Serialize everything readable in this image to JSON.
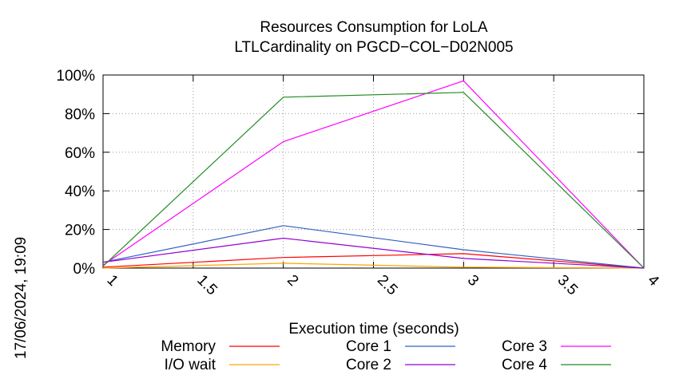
{
  "chart_data": {
    "type": "line",
    "title": "Resources Consumption for LoLA",
    "subtitle": "LTLCardinality on PGCD−COL−D02N005",
    "xlabel": "Execution time (seconds)",
    "ylabel": "",
    "xlim": [
      1,
      4
    ],
    "ylim": [
      0,
      100
    ],
    "x_ticks": [
      "1",
      "1.5",
      "2",
      "2.5",
      "3",
      "3.5",
      "4"
    ],
    "y_ticks": [
      "0%",
      "20%",
      "40%",
      "60%",
      "80%",
      "100%"
    ],
    "grid": true,
    "legend_position": "bottom",
    "x": [
      1,
      2,
      3,
      4
    ],
    "series": [
      {
        "name": "Memory",
        "color": "#ff0000",
        "values": [
          0.5,
          5.5,
          7.5,
          0
        ]
      },
      {
        "name": "I/O wait",
        "color": "#ffa500",
        "values": [
          0,
          2.5,
          0.5,
          0
        ]
      },
      {
        "name": "Core 1",
        "color": "#3060c0",
        "values": [
          3,
          22,
          9.5,
          0
        ]
      },
      {
        "name": "Core 2",
        "color": "#9400d3",
        "values": [
          3,
          15.5,
          5,
          0
        ]
      },
      {
        "name": "Core 3",
        "color": "#ff00ff",
        "values": [
          1.5,
          65.5,
          97,
          0
        ]
      },
      {
        "name": "Core 4",
        "color": "#228b22",
        "values": [
          1,
          88.5,
          91,
          0
        ]
      }
    ]
  },
  "timestamp": "17/06/2024, 19:09"
}
